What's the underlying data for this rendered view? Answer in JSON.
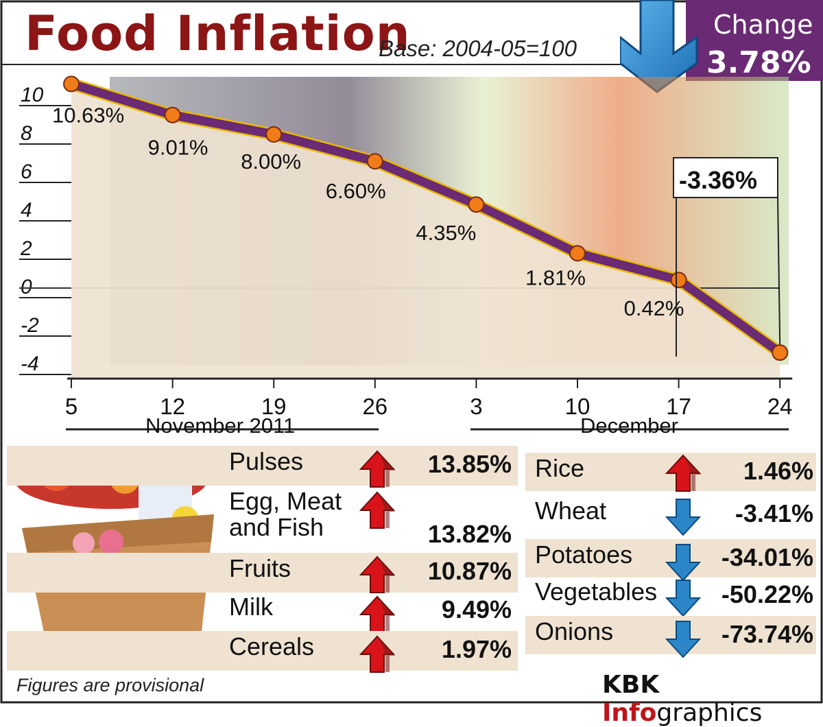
{
  "header": {
    "title": "Food Inflation",
    "base": "Base: 2004-05=100",
    "change_label": "Change",
    "change_value": "3.78%"
  },
  "chart_data": {
    "type": "line",
    "x": [
      "5",
      "12",
      "19",
      "26",
      "3",
      "10",
      "17",
      "24"
    ],
    "values": [
      10.63,
      9.01,
      8.0,
      6.6,
      4.35,
      1.81,
      0.42,
      -3.36
    ],
    "data_labels": [
      "10.63%",
      "9.01%",
      "8.00%",
      "6.60%",
      "4.35%",
      "1.81%",
      "0.42%",
      "-3.36%"
    ],
    "y_ticks": [
      "10",
      "8",
      "6",
      "4",
      "2",
      "0",
      "-2",
      "-4"
    ],
    "y_tick_values": [
      10,
      8,
      6,
      4,
      2,
      0,
      -2,
      -4
    ],
    "ylim": [
      -4.5,
      10.7
    ],
    "x_groups": [
      "November 2011",
      "December"
    ],
    "title": "Food Inflation",
    "subtitle": "Base: 2004-05=100",
    "colors": {
      "line": "#6a2a74",
      "line_edge": "#e8b800",
      "marker": "#f07c1a",
      "fill": "#efe2d0"
    }
  },
  "commodities_left": [
    {
      "name": "Pulses",
      "value": "13.85%",
      "trend": "up"
    },
    {
      "name": "Egg, Meat\nand Fish",
      "value": "13.82%",
      "trend": "up"
    },
    {
      "name": "Fruits",
      "value": "10.87%",
      "trend": "up"
    },
    {
      "name": "Milk",
      "value": "9.49%",
      "trend": "up"
    },
    {
      "name": "Cereals",
      "value": "1.97%",
      "trend": "up"
    }
  ],
  "commodities_right": [
    {
      "name": "Rice",
      "value": "1.46%",
      "trend": "up"
    },
    {
      "name": "Wheat",
      "value": "-3.41%",
      "trend": "down"
    },
    {
      "name": "Potatoes",
      "value": "-34.01%",
      "trend": "down"
    },
    {
      "name": "Vegetables",
      "value": "-50.22%",
      "trend": "down"
    },
    {
      "name": "Onions",
      "value": "-73.74%",
      "trend": "down"
    }
  ],
  "footer": {
    "note": "Figures are provisional",
    "credit_a": "KBK ",
    "credit_b": "Info",
    "credit_c": "graphics"
  },
  "colors": {
    "title": "#8c1515",
    "accent": "#6a2a74",
    "up": "#d8141a",
    "down": "#2b86c8"
  }
}
